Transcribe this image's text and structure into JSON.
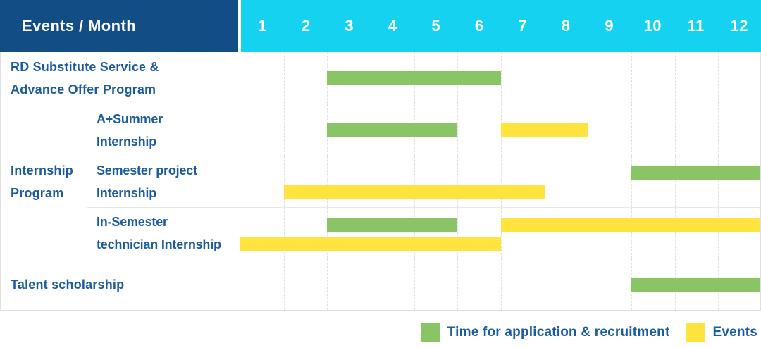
{
  "colors": {
    "header_bg": "#124e85",
    "months_bg": "#14d2f0",
    "green": "#8ac565",
    "yellow": "#ffe33e",
    "label_text": "#1b5c9e",
    "row_line": "#e7e7e7",
    "grid_line": "#e0e0e0",
    "outer_border": "#e0e0e0"
  },
  "header": {
    "title": "Events / Month"
  },
  "chart_data": {
    "type": "gantt",
    "unit": "month",
    "months": [
      "1",
      "2",
      "3",
      "4",
      "5",
      "6",
      "7",
      "8",
      "9",
      "10",
      "11",
      "12"
    ],
    "x_range": [
      1,
      12
    ],
    "grid": "dashed-vertical",
    "bar_kinds": {
      "green": "Time for application & recruitment",
      "yellow": "Events"
    },
    "sections": [
      {
        "type": "row",
        "id": "rd-substitute",
        "label": "RD Substitute Service & Advance Offer Program",
        "label_lines": [
          "RD Substitute Service &",
          "Advance Offer Program"
        ],
        "bars": [
          {
            "color": "green",
            "months": [
              3,
              6
            ],
            "level": "center"
          }
        ]
      },
      {
        "type": "group",
        "id": "internship-program",
        "label": "Internship Program",
        "label_lines": [
          "Internship",
          "Program"
        ],
        "rows": [
          {
            "id": "a-summer",
            "label": "A+Summer Internship",
            "label_lines": [
              "A+Summer",
              "Internship"
            ],
            "bars": [
              {
                "color": "green",
                "months": [
                  3,
                  5
                ],
                "level": "center"
              },
              {
                "color": "yellow",
                "months": [
                  7,
                  8
                ],
                "level": "center"
              }
            ]
          },
          {
            "id": "semester-project",
            "label": "Semester project Internship",
            "label_lines": [
              "Semester project",
              "Internship"
            ],
            "bars": [
              {
                "color": "green",
                "months": [
                  10,
                  12
                ],
                "level": "top"
              },
              {
                "color": "yellow",
                "months": [
                  2,
                  7
                ],
                "level": "bottom"
              }
            ]
          },
          {
            "id": "in-semester",
            "label": "In-Semester technician Internship",
            "label_lines": [
              "In-Semester",
              "technician Internship"
            ],
            "bars": [
              {
                "color": "green",
                "months": [
                  3,
                  5
                ],
                "level": "top"
              },
              {
                "color": "yellow",
                "months": [
                  7,
                  12
                ],
                "level": "top"
              },
              {
                "color": "yellow",
                "months": [
                  1,
                  6
                ],
                "level": "bottom"
              }
            ]
          }
        ]
      },
      {
        "type": "row",
        "id": "talent-scholarship",
        "label": "Talent scholarship",
        "label_lines": [
          "Talent scholarship"
        ],
        "bars": [
          {
            "color": "green",
            "months": [
              10,
              12
            ],
            "level": "center"
          }
        ]
      }
    ]
  },
  "legend": {
    "items": [
      {
        "color": "green",
        "label": "Time for application & recruitment"
      },
      {
        "color": "yellow",
        "label": "Events"
      }
    ]
  }
}
